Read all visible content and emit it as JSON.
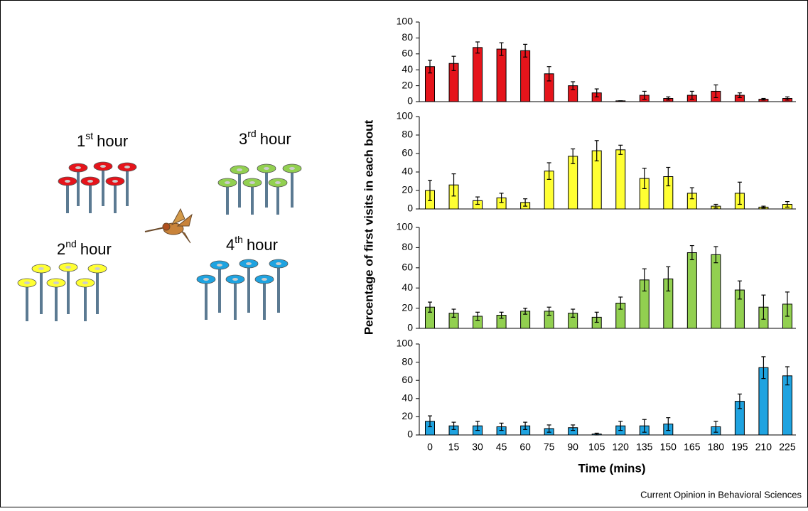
{
  "illustration": {
    "labels": [
      {
        "number": "1",
        "suffix": "st",
        "text": "hour"
      },
      {
        "number": "3",
        "suffix": "rd",
        "text": "hour"
      },
      {
        "number": "2",
        "suffix": "nd",
        "text": "hour"
      },
      {
        "number": "4",
        "suffix": "th",
        "text": "hour"
      }
    ]
  },
  "y_label": "Percentage of first visits in each bout",
  "x_label": "Time (mins)",
  "source": "Current Opinion in Behavioral Sciences",
  "chart_data": [
    {
      "type": "bar",
      "color": "#e5141b",
      "ylim": [
        0,
        100
      ],
      "yticks": [
        0,
        20,
        40,
        60,
        80,
        100
      ],
      "values": [
        44,
        48,
        68,
        66,
        64,
        35,
        20,
        11,
        1,
        8,
        4,
        8,
        13,
        8,
        3,
        4
      ],
      "errors": [
        8,
        9,
        7,
        8,
        8,
        9,
        5,
        5,
        0,
        5,
        2,
        5,
        8,
        3,
        1,
        2
      ]
    },
    {
      "type": "bar",
      "color": "#ffff33",
      "ylim": [
        0,
        100
      ],
      "yticks": [
        0,
        20,
        40,
        60,
        80,
        100
      ],
      "values": [
        20,
        26,
        9,
        12,
        7,
        41,
        57,
        63,
        64,
        33,
        35,
        17,
        3,
        17,
        2,
        5
      ],
      "errors": [
        11,
        12,
        4,
        5,
        4,
        9,
        8,
        11,
        5,
        11,
        10,
        6,
        2,
        12,
        1,
        3
      ]
    },
    {
      "type": "bar",
      "color": "#92d050",
      "ylim": [
        0,
        100
      ],
      "yticks": [
        0,
        20,
        40,
        60,
        80,
        100
      ],
      "values": [
        21,
        15,
        12,
        13,
        17,
        17,
        15,
        11,
        25,
        48,
        49,
        75,
        73,
        38,
        21,
        24
      ],
      "errors": [
        5,
        4,
        4,
        3,
        3,
        4,
        4,
        5,
        6,
        11,
        12,
        7,
        8,
        9,
        12,
        12
      ]
    },
    {
      "type": "bar",
      "color": "#1fa3e0",
      "ylim": [
        0,
        100
      ],
      "yticks": [
        0,
        20,
        40,
        60,
        80,
        100
      ],
      "categories": [
        "0",
        "15",
        "30",
        "45",
        "60",
        "75",
        "90",
        "105",
        "120",
        "135",
        "150",
        "165",
        "180",
        "195",
        "210",
        "225"
      ],
      "values": [
        15,
        10,
        10,
        9,
        10,
        7,
        8,
        1,
        10,
        10,
        12,
        null,
        9,
        37,
        74,
        65
      ],
      "errors": [
        6,
        4,
        5,
        4,
        4,
        4,
        3,
        1,
        5,
        7,
        7,
        null,
        6,
        8,
        12,
        10
      ]
    }
  ]
}
